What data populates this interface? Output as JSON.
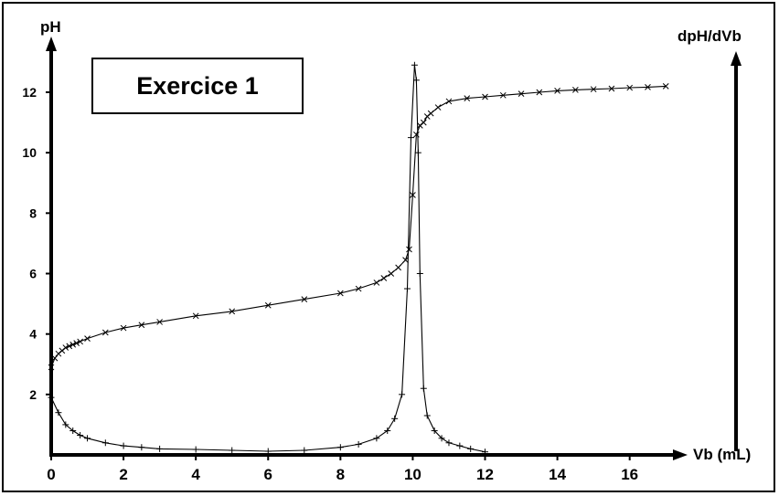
{
  "chart_data": {
    "type": "line",
    "title": "Exercice 1",
    "xlabel": "Vb (mL)",
    "ylabel": "pH",
    "ylabel_right": "dpH/dVb",
    "xlim": [
      0,
      17.5
    ],
    "ylim": [
      0,
      13.3
    ],
    "x_ticks": [
      0,
      2,
      4,
      6,
      8,
      10,
      12,
      14,
      16
    ],
    "y_ticks": [
      2,
      4,
      6,
      8,
      10,
      12
    ],
    "grid": false,
    "series": [
      {
        "marker": "x",
        "x": [
          0,
          0.1,
          0.2,
          0.3,
          0.4,
          0.5,
          0.6,
          0.7,
          0.8,
          1.0,
          1.5,
          2.0,
          2.5,
          3.0,
          4.0,
          5.0,
          6.0,
          7.0,
          8.0,
          8.5,
          9.0,
          9.2,
          9.4,
          9.6,
          9.8,
          9.9,
          10.0,
          10.1,
          10.2,
          10.3,
          10.4,
          10.5,
          10.7,
          11.0,
          11.5,
          12.0,
          12.5,
          13.0,
          13.5,
          14.0,
          14.5,
          15.0,
          15.5,
          16.0,
          16.5,
          17.0
        ],
        "y": [
          2.9,
          3.2,
          3.35,
          3.45,
          3.55,
          3.6,
          3.65,
          3.7,
          3.75,
          3.85,
          4.05,
          4.2,
          4.3,
          4.4,
          4.6,
          4.75,
          4.95,
          5.15,
          5.35,
          5.5,
          5.7,
          5.85,
          6.0,
          6.2,
          6.45,
          6.8,
          8.6,
          10.6,
          10.9,
          11.0,
          11.2,
          11.3,
          11.5,
          11.7,
          11.8,
          11.85,
          11.9,
          11.95,
          12.0,
          12.05,
          12.08,
          12.1,
          12.12,
          12.15,
          12.17,
          12.2
        ]
      },
      {
        "marker": "+",
        "x": [
          0,
          0.2,
          0.4,
          0.6,
          0.8,
          1.0,
          1.5,
          2.0,
          2.5,
          3.0,
          4.0,
          5.0,
          6.0,
          7.0,
          8.0,
          8.5,
          9.0,
          9.3,
          9.5,
          9.7,
          9.85,
          9.95,
          10.05,
          10.1,
          10.15,
          10.2,
          10.3,
          10.4,
          10.6,
          10.8,
          11.0,
          11.3,
          11.6,
          12.0
        ],
        "y": [
          1.9,
          1.4,
          1.0,
          0.8,
          0.65,
          0.55,
          0.4,
          0.3,
          0.25,
          0.2,
          0.18,
          0.15,
          0.12,
          0.15,
          0.25,
          0.35,
          0.55,
          0.8,
          1.2,
          2.0,
          5.5,
          10.5,
          12.9,
          12.4,
          10.0,
          6.0,
          2.2,
          1.3,
          0.8,
          0.55,
          0.4,
          0.3,
          0.2,
          0.1
        ]
      }
    ]
  }
}
